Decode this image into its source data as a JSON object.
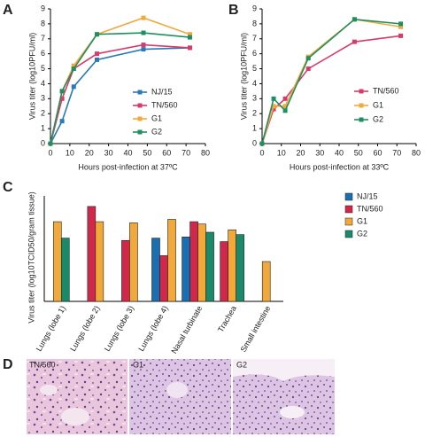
{
  "chart_data": [
    {
      "type": "line",
      "panel": "A",
      "xlabel": "Hours post-infection at 37ºC",
      "ylabel": "Virus titer (log10PFU/ml)",
      "x": [
        0,
        6,
        12,
        24,
        48,
        72
      ],
      "xlim": [
        0,
        80
      ],
      "xticks": [
        0,
        10,
        20,
        30,
        40,
        50,
        60,
        70,
        80
      ],
      "ylim": [
        0,
        9
      ],
      "yticks": [
        0,
        1,
        2,
        3,
        4,
        5,
        6,
        7,
        8,
        9
      ],
      "series": [
        {
          "name": "NJ/15",
          "color": "#2a7ab8",
          "values": [
            0,
            1.5,
            3.8,
            5.6,
            6.3,
            6.4
          ]
        },
        {
          "name": "TN/560",
          "color": "#d93a6a",
          "values": [
            0,
            3.0,
            5.0,
            6.0,
            6.6,
            6.4
          ]
        },
        {
          "name": "G1",
          "color": "#f2a83b",
          "values": [
            0,
            3.5,
            5.2,
            7.3,
            8.4,
            7.3
          ]
        },
        {
          "name": "G2",
          "color": "#1f8f5f",
          "values": [
            0,
            3.5,
            5.0,
            7.3,
            7.4,
            7.1
          ]
        }
      ]
    },
    {
      "type": "line",
      "panel": "B",
      "xlabel": "Hours post-infection at 33ºC",
      "ylabel": "Virus titer (log10PFU/ml)",
      "x": [
        0,
        6,
        12,
        24,
        48,
        72
      ],
      "xlim": [
        0,
        80
      ],
      "xticks": [
        0,
        10,
        20,
        30,
        40,
        50,
        60,
        70,
        80
      ],
      "ylim": [
        0,
        9
      ],
      "yticks": [
        0,
        1,
        2,
        3,
        4,
        5,
        6,
        7,
        8,
        9
      ],
      "series": [
        {
          "name": "TN/560",
          "color": "#d93a6a",
          "values": [
            0,
            2.3,
            3.0,
            5.0,
            6.8,
            7.2
          ]
        },
        {
          "name": "G1",
          "color": "#f2a83b",
          "values": [
            0,
            2.5,
            2.5,
            5.8,
            8.3,
            7.8
          ]
        },
        {
          "name": "G2",
          "color": "#1f8f5f",
          "values": [
            0,
            3.0,
            2.2,
            5.7,
            8.3,
            8.0
          ]
        }
      ]
    },
    {
      "type": "bar",
      "panel": "C",
      "ylabel": "Virus titer (log10TCID50/gram tissue)",
      "categories": [
        "Lungs (lobe 1)",
        "Lungs (lobe 2)",
        "Lungs (lobe 3)",
        "Lungs (lobe 4)",
        "Nasal turbinate",
        "Trachea",
        "Small intestine"
      ],
      "ylim": [
        0,
        9
      ],
      "series": [
        {
          "name": "NJ/15",
          "color": "#1b6fb0",
          "values": [
            null,
            null,
            null,
            5.4,
            5.5,
            null,
            null
          ]
        },
        {
          "name": "TN/560",
          "color": "#d0284a",
          "values": [
            null,
            8.1,
            5.2,
            3.9,
            6.8,
            5.1,
            null
          ]
        },
        {
          "name": "G1",
          "color": "#f0a93a",
          "values": [
            6.8,
            6.8,
            6.7,
            7.0,
            6.6,
            6.1,
            3.4
          ]
        },
        {
          "name": "G2",
          "color": "#1a8a6a",
          "values": [
            5.4,
            null,
            null,
            null,
            5.9,
            5.7,
            null
          ]
        }
      ]
    }
  ],
  "histology": {
    "panel": "D",
    "labels": [
      "TN/560",
      "G1",
      "G2"
    ]
  }
}
